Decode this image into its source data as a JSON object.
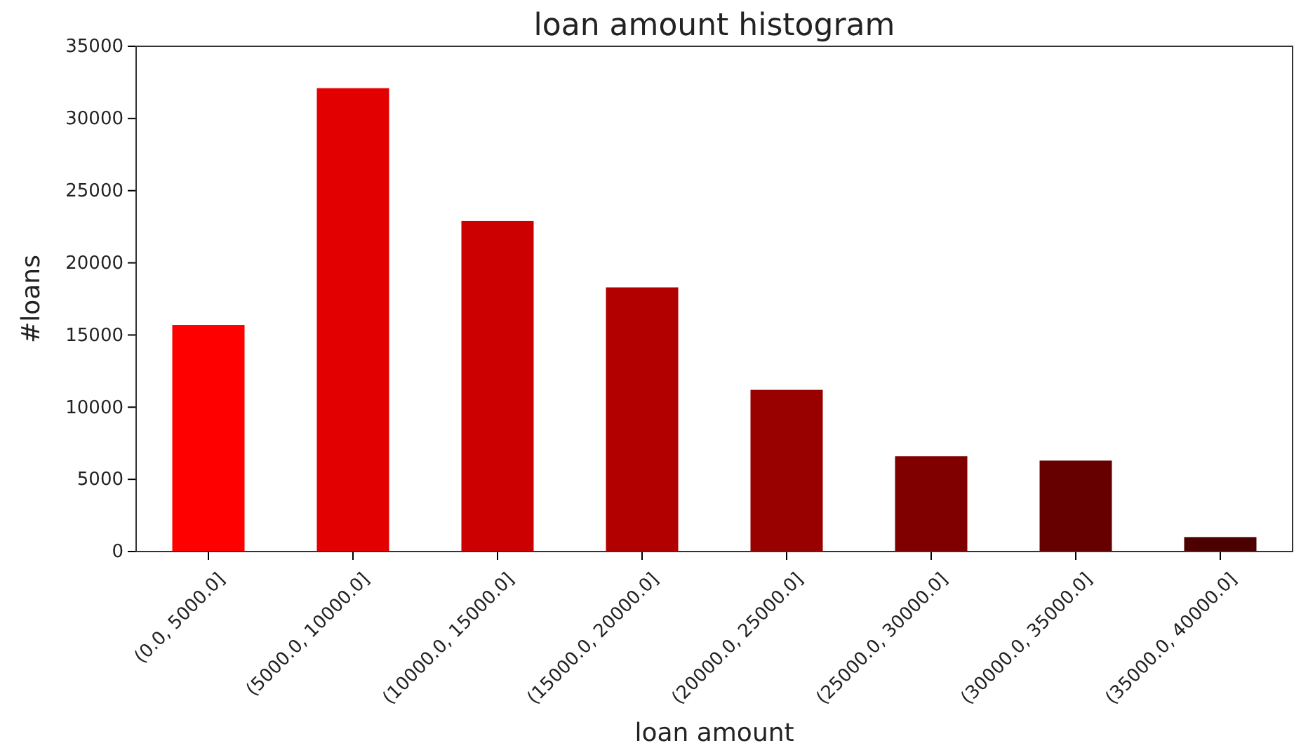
{
  "chart_data": {
    "type": "bar",
    "title": "loan amount histogram",
    "xlabel": "loan amount",
    "ylabel": "#loans",
    "categories": [
      "(0.0, 5000.0]",
      "(5000.0, 10000.0]",
      "(10000.0, 15000.0]",
      "(15000.0, 20000.0]",
      "(20000.0, 25000.0]",
      "(25000.0, 30000.0]",
      "(30000.0, 35000.0]",
      "(35000.0, 40000.0]"
    ],
    "values": [
      15700,
      32100,
      22900,
      18300,
      11200,
      6600,
      6300,
      1000
    ],
    "colors": [
      "#ff0000",
      "#e30000",
      "#cc0000",
      "#b20000",
      "#990000",
      "#800000",
      "#660000",
      "#4c0000"
    ],
    "ylim": [
      0,
      35000
    ],
    "yticks": [
      0,
      5000,
      10000,
      15000,
      20000,
      25000,
      30000,
      35000
    ]
  }
}
